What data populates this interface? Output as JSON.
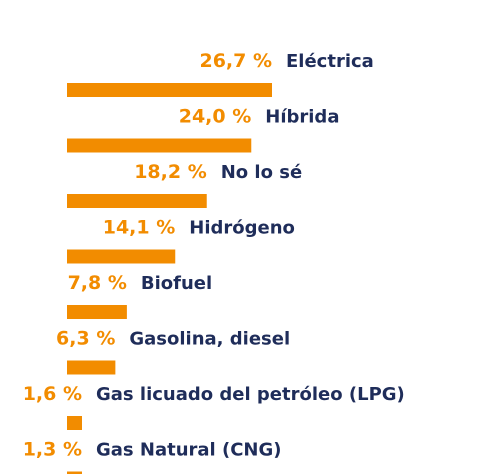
{
  "chart_data": {
    "type": "bar",
    "orientation": "horizontal",
    "title": "",
    "xlabel": "",
    "ylabel": "",
    "grid": false,
    "legend": "none",
    "bar_color": "#f28c00",
    "label_color": "#1f2d5a",
    "value_label_color": "#f28c00",
    "xlim": [
      0,
      26.7
    ],
    "categories": [
      "Eléctrica",
      "Híbrida",
      "No lo sé",
      "Hidrógeno",
      "Biofuel",
      "Gasolina, diesel",
      "Gas licuado del petróleo (LPG)",
      "Gas Natural (CNG)"
    ],
    "values": [
      26.7,
      24.0,
      18.2,
      14.1,
      7.8,
      6.3,
      1.6,
      1.3
    ],
    "value_labels": [
      "26,7 %",
      "24,0 %",
      "18,2 %",
      "14,1 %",
      "7,8 %",
      "6,3 %",
      "1,6 %",
      "1,3 %"
    ]
  }
}
